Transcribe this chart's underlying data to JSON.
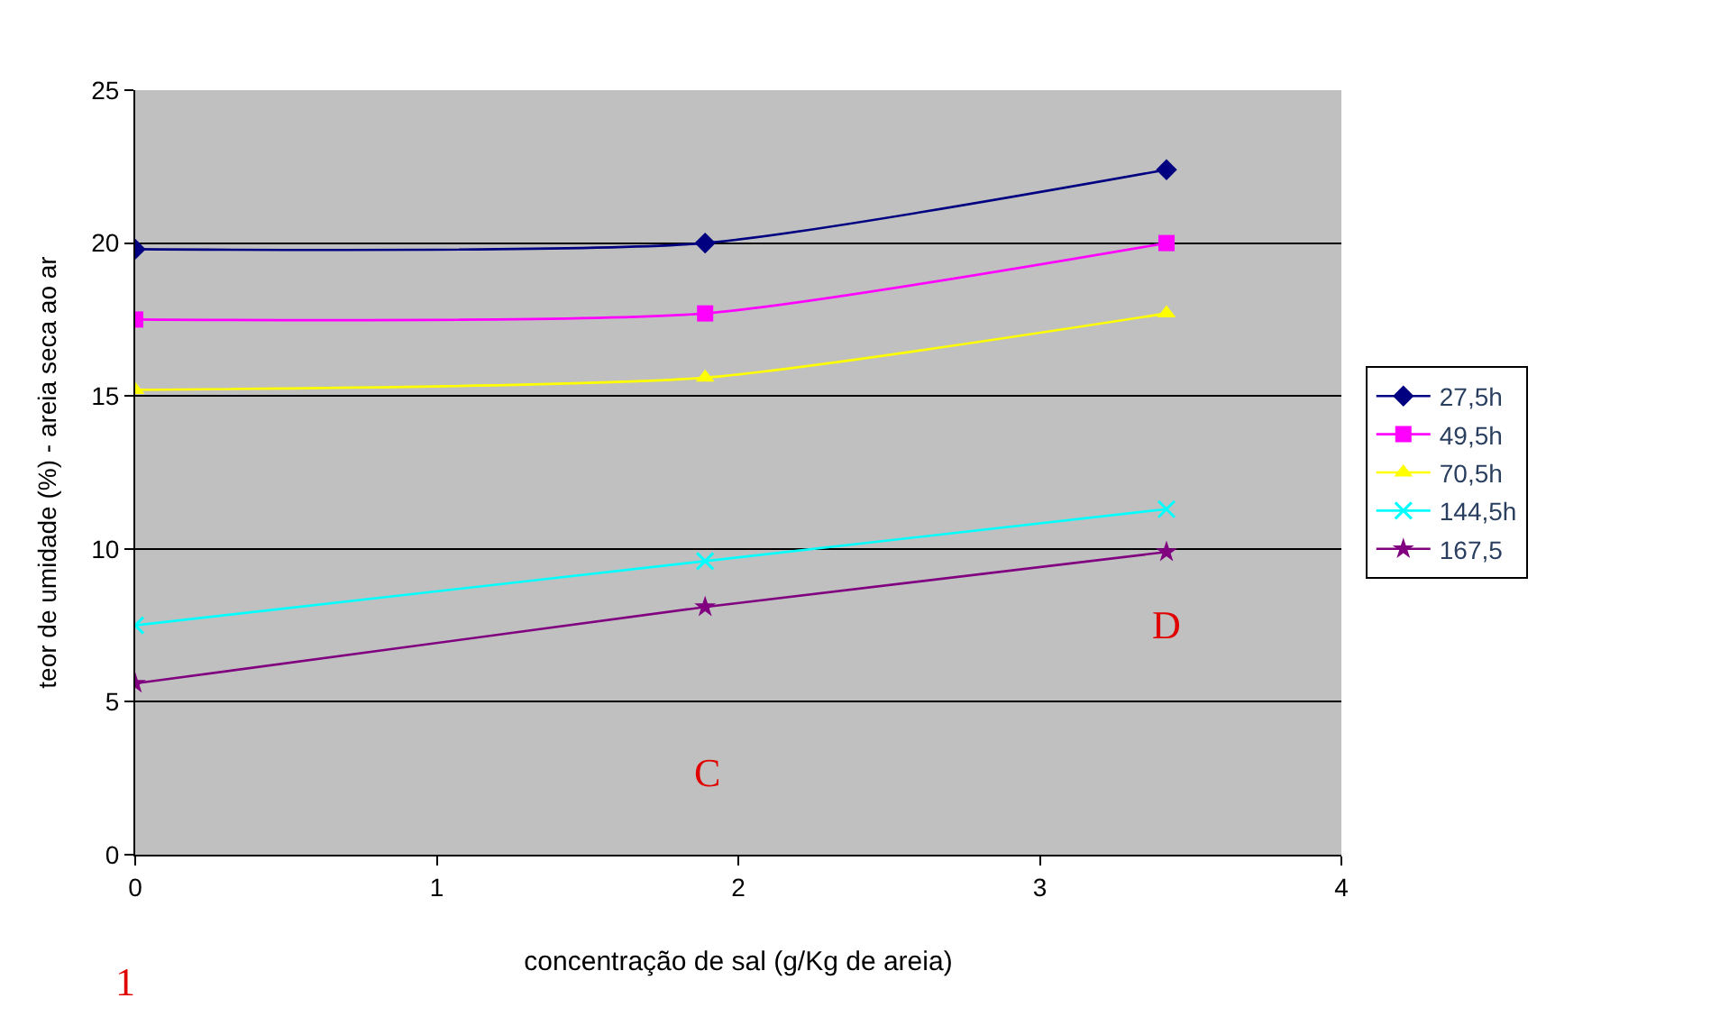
{
  "chart_data": {
    "type": "line",
    "xlabel": "concentração de sal (g/Kg de areia)",
    "ylabel": "teor de umidade (%) - areia seca ao ar",
    "x": [
      0,
      1.89,
      3.42
    ],
    "series": [
      {
        "name": "27,5h",
        "color": "#000080",
        "marker": "diamond",
        "values": [
          19.8,
          20.0,
          22.4
        ]
      },
      {
        "name": "49,5h",
        "color": "#ff00ff",
        "marker": "square",
        "values": [
          17.5,
          17.7,
          20.0
        ]
      },
      {
        "name": "70,5h",
        "color": "#ffff00",
        "marker": "triangle",
        "values": [
          15.2,
          15.6,
          17.7
        ]
      },
      {
        "name": "144,5h",
        "color": "#00ffff",
        "marker": "cross",
        "values": [
          7.5,
          9.6,
          11.3
        ]
      },
      {
        "name": "167,5",
        "color": "#800080",
        "marker": "star",
        "values": [
          5.6,
          8.1,
          9.9
        ]
      }
    ],
    "xlim": [
      0,
      4
    ],
    "xticks": [
      0,
      1,
      2,
      3,
      4
    ],
    "ylim": [
      0,
      25
    ],
    "yticks": [
      0,
      5,
      10,
      15,
      20,
      25
    ],
    "grid": "y",
    "legend": "right",
    "annotations": [
      "C",
      "D",
      "1"
    ]
  }
}
